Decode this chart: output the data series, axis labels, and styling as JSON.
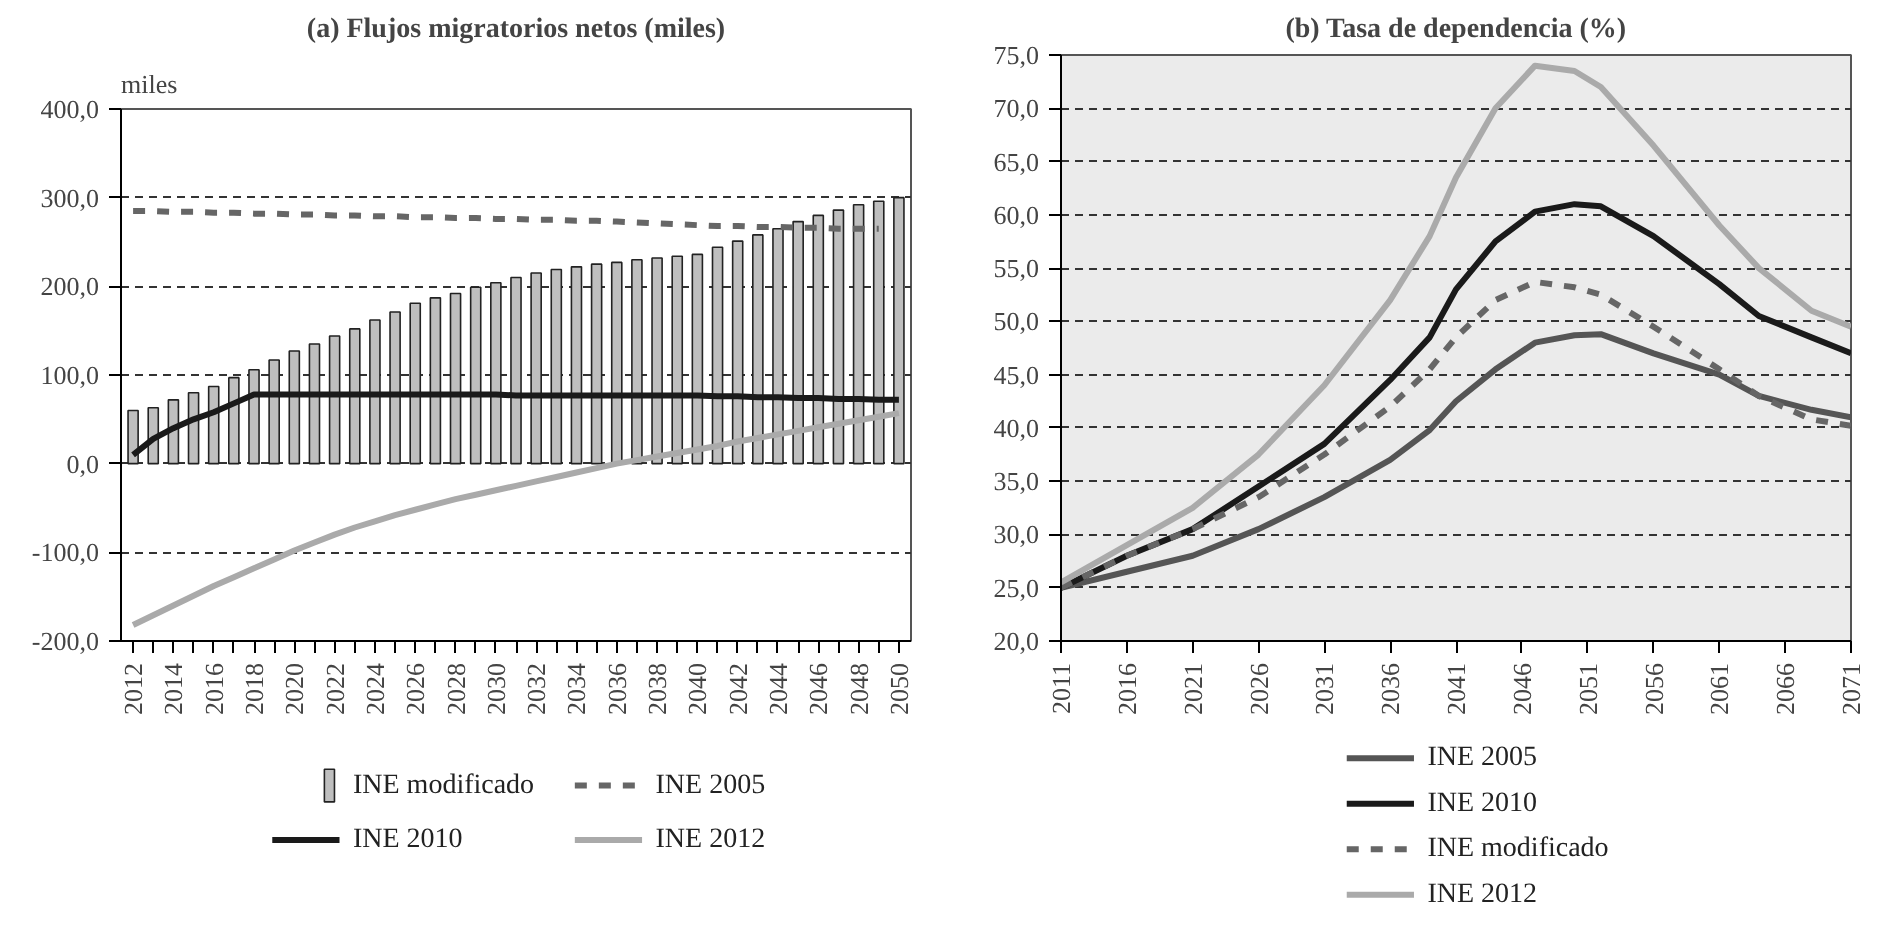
{
  "chart_data": [
    {
      "type": "bar",
      "title": "(a) Flujos migratorios netos (miles)",
      "ylabel": "miles",
      "categories": [
        "2012",
        null,
        "2014",
        null,
        "2016",
        null,
        "2018",
        null,
        "2020",
        null,
        "2022",
        null,
        "2024",
        null,
        "2026",
        null,
        "2028",
        null,
        "2030",
        null,
        "2032",
        null,
        "2034",
        null,
        "2036",
        null,
        "2038",
        null,
        "2040",
        null,
        "2042",
        null,
        "2044",
        null,
        "2046",
        null,
        "2048",
        null,
        "2050"
      ],
      "ylim": [
        -200,
        400
      ],
      "yticks": [
        {
          "value": -200,
          "label": "-200,0"
        },
        {
          "value": -100,
          "label": "-100,0"
        },
        {
          "value": 0,
          "label": "0,0"
        },
        {
          "value": 100,
          "label": "100,0"
        },
        {
          "value": 200,
          "label": "200,0"
        },
        {
          "value": 300,
          "label": "300,0"
        },
        {
          "value": 400,
          "label": "400,0"
        }
      ],
      "grid": "y",
      "legend": "bottom",
      "series": [
        {
          "name": "INE modificado",
          "type": "bar",
          "color": "#bfbfbf",
          "values": [
            60,
            63,
            72,
            80,
            87,
            97,
            106,
            117,
            127,
            135,
            144,
            152,
            162,
            171,
            181,
            187,
            192,
            199,
            204,
            210,
            215,
            219,
            222,
            225,
            227,
            230,
            232,
            234,
            236,
            244,
            251,
            258,
            265,
            273,
            280,
            286,
            292,
            296,
            300
          ]
        },
        {
          "name": "INE 2005",
          "type": "line",
          "line_style": "dashed",
          "color": "#666666",
          "values": [
            285,
            285,
            284,
            284,
            283,
            283,
            282,
            282,
            281,
            281,
            280,
            280,
            279,
            279,
            278,
            278,
            277,
            277,
            276,
            276,
            275,
            275,
            274,
            274,
            273,
            272,
            271,
            270,
            269,
            268,
            268,
            267,
            267,
            266,
            266,
            265,
            265,
            265,
            null
          ]
        },
        {
          "name": "INE 2010",
          "type": "line",
          "line_style": "solid",
          "color": "#1a1a1a",
          "values": [
            10,
            28,
            40,
            50,
            58,
            68,
            78,
            78,
            78,
            78,
            78,
            78,
            78,
            78,
            78,
            78,
            78,
            78,
            78,
            77,
            77,
            77,
            77,
            77,
            77,
            77,
            77,
            77,
            77,
            76,
            76,
            75,
            75,
            74,
            74,
            73,
            73,
            72,
            72
          ]
        },
        {
          "name": "INE 2012",
          "type": "line",
          "line_style": "solid",
          "color": "#aaaaaa",
          "values": [
            -182,
            -171,
            -160,
            -149,
            -138,
            -128,
            -118,
            -108,
            -98,
            -89,
            -80,
            -72,
            -65,
            -58,
            -52,
            -46,
            -40,
            -35,
            -30,
            -25,
            -20,
            -15,
            -10,
            -5,
            0,
            4,
            8,
            12,
            16,
            20,
            25,
            29,
            33,
            37,
            41,
            45,
            49,
            53,
            57
          ]
        }
      ]
    },
    {
      "type": "line",
      "title": "(b) Tasa de dependencia (%)",
      "x": [
        2011,
        2016,
        2021,
        2026,
        2031,
        2036,
        2039,
        2041,
        2044,
        2047,
        2050,
        2052,
        2056,
        2061,
        2064,
        2068,
        2071
      ],
      "xlim": [
        2011,
        2071
      ],
      "xticks": [
        2011,
        2016,
        2021,
        2026,
        2031,
        2036,
        2041,
        2046,
        2051,
        2056,
        2061,
        2066,
        2071
      ],
      "ylim": [
        20,
        75
      ],
      "yticks": [
        {
          "value": 20,
          "label": "20,0"
        },
        {
          "value": 25,
          "label": "25,0"
        },
        {
          "value": 30,
          "label": "30,0"
        },
        {
          "value": 35,
          "label": "35,0"
        },
        {
          "value": 40,
          "label": "40,0"
        },
        {
          "value": 45,
          "label": "45,0"
        },
        {
          "value": 50,
          "label": "50,0"
        },
        {
          "value": 55,
          "label": "55,0"
        },
        {
          "value": 60,
          "label": "60,0"
        },
        {
          "value": 65,
          "label": "65,0"
        },
        {
          "value": 70,
          "label": "70,0"
        },
        {
          "value": 75,
          "label": "75,0"
        }
      ],
      "grid": "y",
      "legend": "bottom",
      "series": [
        {
          "name": "INE 2005",
          "line_style": "solid",
          "color": "#555555",
          "values": [
            25,
            26.5,
            28,
            30.5,
            33.5,
            37,
            39.8,
            42.5,
            45.5,
            48,
            48.7,
            48.8,
            47,
            45,
            43,
            41.7,
            41
          ]
        },
        {
          "name": "INE 2010",
          "line_style": "solid",
          "color": "#1a1a1a",
          "values": [
            25,
            28,
            30.5,
            34.5,
            38.5,
            44.5,
            48.5,
            53,
            57.5,
            60.3,
            61,
            60.8,
            58,
            53.5,
            50.5,
            48.5,
            47
          ]
        },
        {
          "name": "INE modificado",
          "line_style": "dashed",
          "color": "#666666",
          "values": [
            25,
            28,
            30.5,
            33.5,
            37.5,
            42,
            45.5,
            48.5,
            52,
            53.7,
            53.2,
            52.5,
            49.5,
            45.5,
            43,
            40.8,
            40.2
          ]
        },
        {
          "name": "INE 2012",
          "line_style": "solid",
          "color": "#aaaaaa",
          "values": [
            25.5,
            29,
            32.5,
            37.5,
            44,
            52,
            58,
            63.5,
            70,
            74,
            73.5,
            72,
            66.5,
            59,
            55,
            51,
            49.5
          ]
        }
      ]
    }
  ]
}
